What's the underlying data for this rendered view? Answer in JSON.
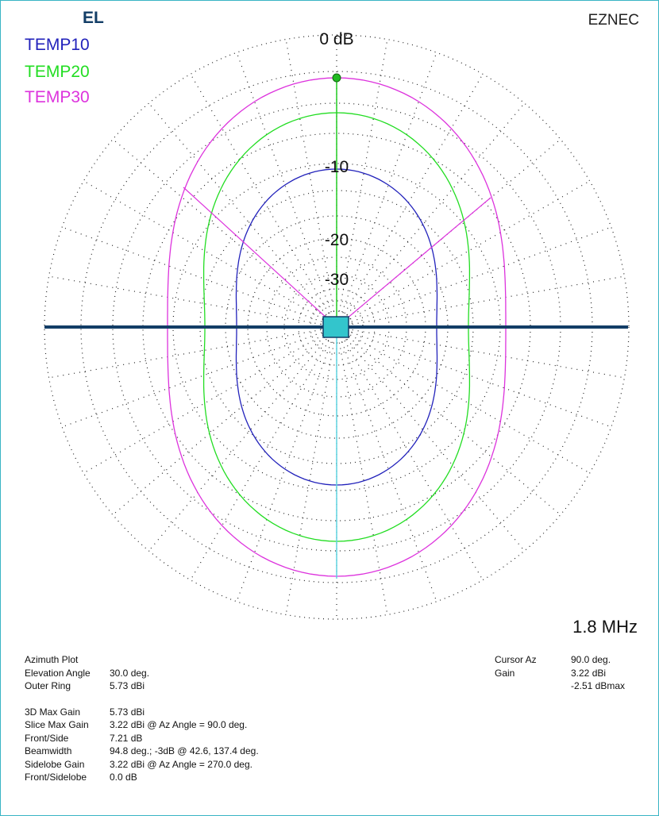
{
  "plot": {
    "title": "EL",
    "brand": "EZNEC",
    "frequency": "1.8 MHz",
    "legend": [
      {
        "name": "TEMP10",
        "color": "#2222bb"
      },
      {
        "name": "TEMP20",
        "color": "#22dd22"
      },
      {
        "name": "TEMP30",
        "color": "#dd33dd"
      }
    ],
    "ring_labels": [
      "0 dB",
      "-10",
      "-20",
      "-30"
    ]
  },
  "info_left": [
    [
      "Azimuth Plot",
      ""
    ],
    [
      "Elevation Angle",
      "30.0 deg."
    ],
    [
      "Outer Ring",
      "5.73 dBi"
    ],
    [
      "3D Max Gain",
      "5.73 dBi"
    ],
    [
      "Slice Max Gain",
      "3.22 dBi @ Az Angle = 90.0 deg."
    ],
    [
      "Front/Side",
      "7.21 dB"
    ],
    [
      "Beamwidth",
      "94.8 deg.; -3dB @ 42.6, 137.4 deg."
    ],
    [
      "Sidelobe Gain",
      "3.22 dBi @ Az Angle = 270.0 deg."
    ],
    [
      "Front/Sidelobe",
      "0.0 dB"
    ]
  ],
  "info_right": [
    [
      "Cursor Az",
      "90.0 deg."
    ],
    [
      "Gain",
      "3.22 dBi"
    ],
    [
      "",
      "-2.51 dBmax"
    ]
  ]
}
